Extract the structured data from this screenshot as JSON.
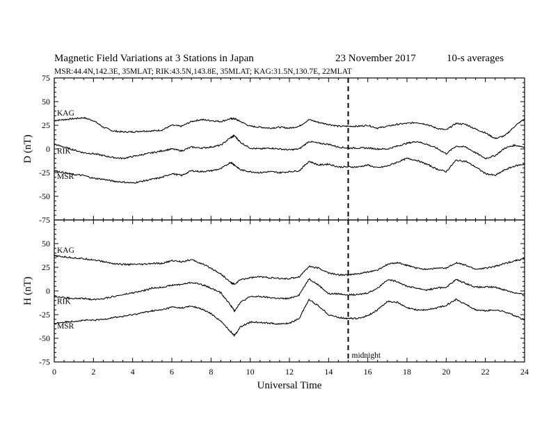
{
  "header": {
    "title": "Magnetic Field Variations at 3 Stations in Japan",
    "date": "23 November 2017",
    "averaging": "10-s averages",
    "stations_line": "MSR:44.4N,142.3E, 35MLAT;  RIK:43.5N,143.8E, 35MLAT;  KAG:31.5N,130.7E, 22MLAT"
  },
  "annotation": {
    "midnight_label": "midnight",
    "midnight_ut": 15
  },
  "colors": {
    "ink": "#000000",
    "background": "#ffffff"
  },
  "chart_data": [
    {
      "type": "line",
      "panel": "top",
      "ylabel": "D (nT)",
      "xlabel": "",
      "xlim": [
        0,
        24
      ],
      "ylim": [
        -75,
        75
      ],
      "y_ticks": [
        "75",
        "50",
        "25",
        "0",
        "-25",
        "-50",
        "-75"
      ],
      "x_ticks": [],
      "x": [
        0,
        0.5,
        1,
        1.5,
        2,
        2.5,
        3,
        3.5,
        4,
        4.5,
        5,
        5.5,
        6,
        6.5,
        7,
        7.5,
        8,
        8.5,
        9,
        9.2,
        9.5,
        10,
        10.5,
        11,
        11.5,
        12,
        12.5,
        13,
        13.5,
        14,
        14.5,
        15,
        15.5,
        16,
        16.5,
        17,
        17.5,
        18,
        18.5,
        19,
        19.5,
        20,
        20.5,
        21,
        21.5,
        22,
        22.5,
        23,
        23.5,
        24
      ],
      "series": [
        {
          "name": "KAG",
          "values": [
            30,
            31,
            32,
            33,
            30,
            23,
            19,
            18,
            18,
            19,
            19,
            20,
            25,
            24,
            29,
            31,
            30,
            29,
            32,
            32,
            29,
            24,
            23,
            22,
            23,
            22,
            24,
            31,
            28,
            26,
            24,
            24,
            24,
            25,
            22,
            24,
            26,
            27,
            28,
            26,
            22,
            20,
            27,
            26,
            21,
            17,
            11,
            14,
            24,
            32
          ]
        },
        {
          "name": "RIK",
          "values": [
            5,
            2,
            -1,
            -4,
            -5,
            -7,
            -9,
            -10,
            -8,
            -6,
            -4,
            -2,
            0,
            -2,
            2,
            1,
            2,
            4,
            12,
            14,
            7,
            1,
            0,
            1,
            0,
            -1,
            0,
            8,
            6,
            5,
            2,
            1,
            1,
            1,
            0,
            0,
            3,
            6,
            8,
            5,
            1,
            -5,
            3,
            2,
            -4,
            -10,
            -7,
            1,
            4,
            2
          ]
        },
        {
          "name": "MSR",
          "values": [
            -23,
            -25,
            -27,
            -28,
            -31,
            -32,
            -34,
            -35,
            -36,
            -34,
            -32,
            -30,
            -26,
            -28,
            -23,
            -24,
            -23,
            -21,
            -14,
            -17,
            -22,
            -24,
            -25,
            -24,
            -25,
            -24,
            -23,
            -13,
            -17,
            -16,
            -19,
            -19,
            -19,
            -17,
            -20,
            -18,
            -14,
            -10,
            -12,
            -16,
            -21,
            -24,
            -12,
            -13,
            -19,
            -26,
            -28,
            -22,
            -18,
            -16
          ]
        }
      ]
    },
    {
      "type": "line",
      "panel": "bottom",
      "ylabel": "H (nT)",
      "xlabel": "Universal Time",
      "xlim": [
        0,
        24
      ],
      "ylim": [
        -75,
        75
      ],
      "y_ticks": [
        "",
        "50",
        "25",
        "0",
        "-25",
        "-50",
        "-75"
      ],
      "x_ticks": [
        "0",
        "2",
        "4",
        "6",
        "8",
        "10",
        "12",
        "14",
        "16",
        "18",
        "20",
        "22",
        "24"
      ],
      "x": [
        0,
        0.5,
        1,
        1.5,
        2,
        2.5,
        3,
        3.5,
        4,
        4.5,
        5,
        5.5,
        6,
        6.5,
        7,
        7.5,
        8,
        8.5,
        9,
        9.2,
        9.5,
        10,
        10.5,
        11,
        11.5,
        12,
        12.5,
        13,
        13.5,
        14,
        14.5,
        15,
        15.5,
        16,
        16.5,
        17,
        17.5,
        18,
        18.5,
        19,
        19.5,
        20,
        20.5,
        21,
        21.5,
        22,
        22.5,
        23,
        23.5,
        24
      ],
      "series": [
        {
          "name": "KAG",
          "values": [
            37,
            36,
            35,
            34,
            33,
            31,
            29,
            28,
            28,
            28,
            29,
            29,
            32,
            31,
            33,
            29,
            24,
            18,
            9,
            7,
            12,
            14,
            15,
            14,
            13,
            13,
            15,
            26,
            24,
            19,
            17,
            17,
            18,
            20,
            22,
            28,
            30,
            27,
            24,
            23,
            24,
            24,
            30,
            27,
            23,
            24,
            26,
            29,
            32,
            34
          ]
        },
        {
          "name": "RIK",
          "values": [
            -6,
            -7,
            -8,
            -8,
            -9,
            -8,
            -6,
            -4,
            -2,
            0,
            3,
            4,
            6,
            7,
            9,
            7,
            3,
            -2,
            -15,
            -21,
            -12,
            -6,
            -6,
            -7,
            -8,
            -8,
            -4,
            13,
            6,
            -3,
            -3,
            -4,
            -4,
            -2,
            3,
            12,
            10,
            5,
            3,
            1,
            3,
            4,
            12,
            8,
            4,
            4,
            4,
            1,
            -2,
            -4
          ]
        },
        {
          "name": "MSR",
          "values": [
            -34,
            -33,
            -32,
            -31,
            -31,
            -30,
            -28,
            -27,
            -25,
            -23,
            -21,
            -20,
            -17,
            -18,
            -16,
            -19,
            -24,
            -32,
            -43,
            -47,
            -38,
            -33,
            -33,
            -34,
            -35,
            -34,
            -29,
            -9,
            -16,
            -25,
            -28,
            -29,
            -29,
            -26,
            -20,
            -11,
            -12,
            -18,
            -20,
            -20,
            -18,
            -15,
            -9,
            -14,
            -20,
            -21,
            -20,
            -22,
            -26,
            -31
          ]
        }
      ]
    }
  ]
}
